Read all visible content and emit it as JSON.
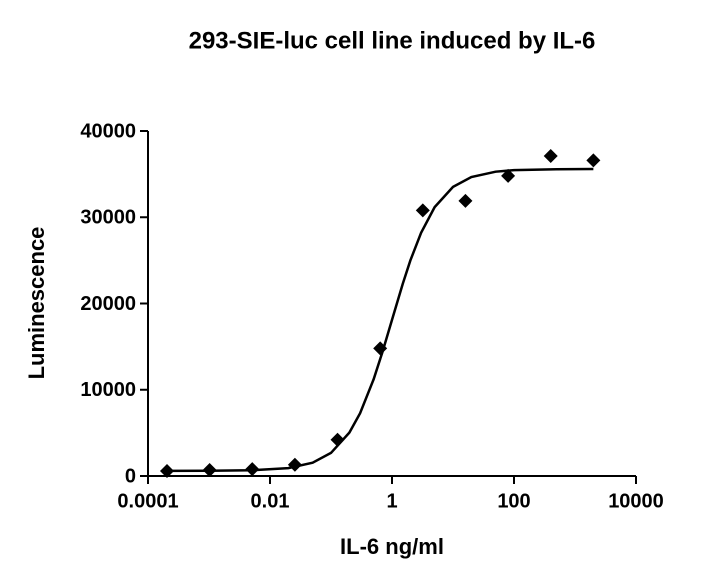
{
  "chart_data": {
    "type": "scatter",
    "title": "293-SIE-luc cell line induced by IL-6",
    "x_label": "IL-6 ng/ml",
    "y_label": "Luminescence",
    "x_scale": "log",
    "xlim": [
      0.0001,
      10000
    ],
    "xticks": [
      0.0001,
      0.01,
      1,
      100,
      10000
    ],
    "ylim": [
      0,
      40000
    ],
    "yticks": [
      0,
      10000,
      20000,
      30000,
      40000
    ],
    "grid": false,
    "series": [
      {
        "color": "#000000",
        "marker": "diamond",
        "x": [
          0.0002048,
          0.001024,
          0.00512,
          0.0256,
          0.128,
          0.64,
          3.2,
          16,
          80,
          400,
          2000
        ],
        "values": [
          580,
          700,
          800,
          1300,
          4200,
          14800,
          30800,
          31900,
          34800,
          37100,
          36600
        ]
      },
      {
        "color": "#000000",
        "marker": "line",
        "x": [
          0.0002,
          0.001,
          0.005,
          0.02,
          0.05,
          0.1,
          0.2,
          0.3,
          0.5,
          0.7,
          1,
          1.5,
          2,
          3,
          5,
          10,
          20,
          50,
          100,
          500,
          2000
        ],
        "values": [
          600,
          609,
          660,
          917,
          1536,
          2677,
          5030,
          7279,
          11215,
          14412,
          18100,
          22272,
          24990,
          28203,
          31170,
          33523,
          34663,
          35283,
          35461,
          35560,
          35590
        ]
      }
    ]
  }
}
